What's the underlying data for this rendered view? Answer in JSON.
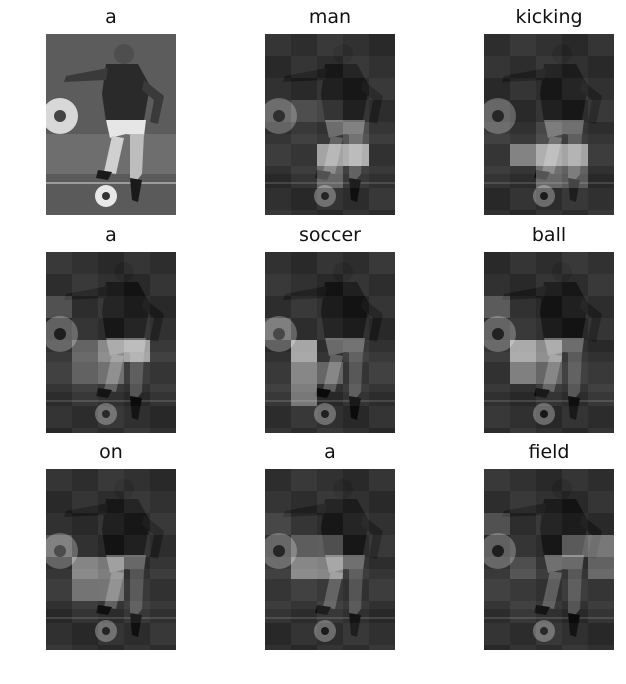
{
  "panels": [
    {
      "word": "a"
    },
    {
      "word": "man"
    },
    {
      "word": "kicking"
    },
    {
      "word": "a"
    },
    {
      "word": "soccer"
    },
    {
      "word": "ball"
    },
    {
      "word": "on"
    },
    {
      "word": "a"
    },
    {
      "word": "field"
    }
  ]
}
